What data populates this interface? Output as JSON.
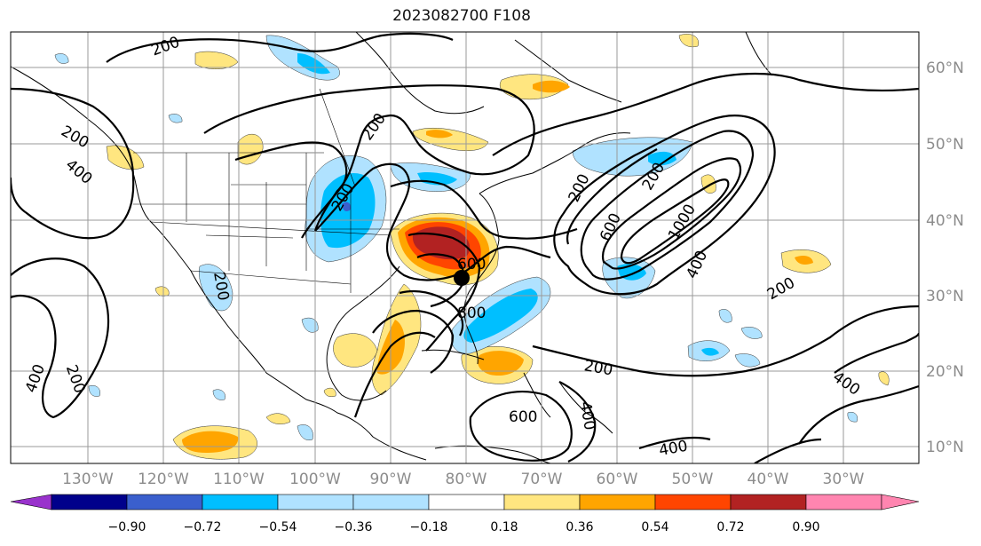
{
  "title": "2023082700 F108",
  "lon_labels": [
    "130°W",
    "120°W",
    "110°W",
    "100°W",
    "90°W",
    "80°W",
    "70°W",
    "60°W",
    "50°W",
    "40°W",
    "30°W"
  ],
  "lat_labels": [
    "60°N",
    "50°N",
    "40°N",
    "30°N",
    "20°N",
    "10°N"
  ],
  "colorbar": {
    "ticks": [
      "−0.90",
      "−0.72",
      "−0.54",
      "−0.36",
      "−0.18",
      "0.18",
      "0.36",
      "0.54",
      "0.72",
      "0.90"
    ],
    "colors": [
      "#9932cc",
      "#00008b",
      "#3a5fcd",
      "#00bfff",
      "#b0e2ff",
      "#ffffff",
      "#ffe680",
      "#ffa500",
      "#ff4500",
      "#b22222",
      "#ff85b0"
    ]
  },
  "contour_labels": [
    "200",
    "200",
    "200",
    "400",
    "200",
    "200",
    "200",
    "600",
    "1000",
    "400",
    "200",
    "600",
    "800",
    "200",
    "400",
    "200",
    "400",
    "200",
    "600",
    "400",
    "400"
  ],
  "map_colors": {
    "contour": "#000000",
    "grid": "#9a9a9a",
    "label": "#8c8c8c"
  }
}
